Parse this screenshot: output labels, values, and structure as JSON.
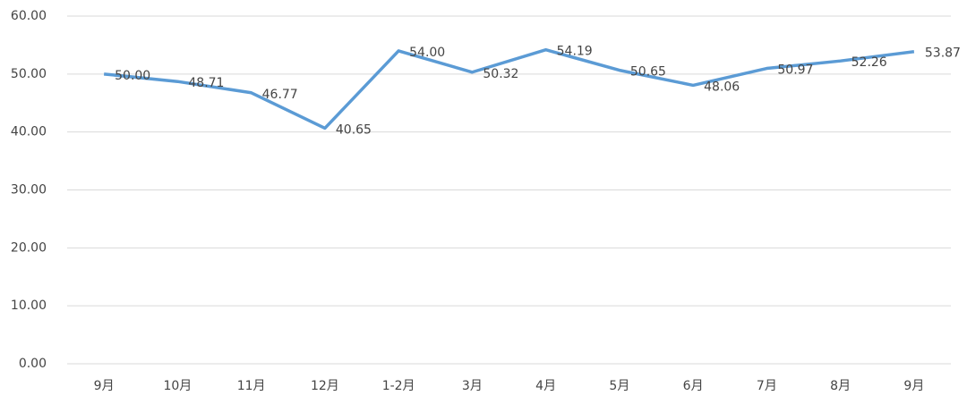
{
  "chart_data": {
    "type": "line",
    "categories": [
      "9月",
      "10月",
      "11月",
      "12月",
      "1-2月",
      "3月",
      "4月",
      "5月",
      "6月",
      "7月",
      "8月",
      "9月"
    ],
    "series": [
      {
        "color": "#5b9bd5",
        "values": [
          50,
          48.71,
          46.77,
          40.65,
          54,
          50.32,
          54.19,
          50.65,
          48.06,
          50.97,
          52.26,
          53.87
        ],
        "value_labels": [
          "50.00",
          "48.71",
          "46.77",
          "40.65",
          "54.00",
          "50.32",
          "54.19",
          "50.65",
          "48.06",
          "50.97",
          "52.26",
          "53.87"
        ]
      }
    ],
    "ylim": [
      0,
      60
    ],
    "yticks": [
      {
        "value": 0,
        "label": "0.00"
      },
      {
        "value": 10,
        "label": "10.00"
      },
      {
        "value": 20,
        "label": "20.00"
      },
      {
        "value": 30,
        "label": "30.00"
      },
      {
        "value": 40,
        "label": "40.00"
      },
      {
        "value": 50,
        "label": "50.00"
      },
      {
        "value": 60,
        "label": "60.00"
      }
    ],
    "grid": true
  }
}
